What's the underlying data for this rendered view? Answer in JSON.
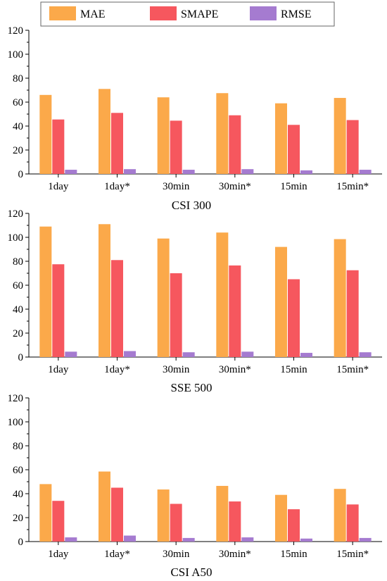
{
  "legend": {
    "items": [
      {
        "label": "MAE",
        "color": "#FBA94A"
      },
      {
        "label": "SMAPE",
        "color": "#F6575E"
      },
      {
        "label": "RMSE",
        "color": "#A57BD0"
      }
    ]
  },
  "chart_data": [
    {
      "type": "bar",
      "xlabel": "CSI 300",
      "categories": [
        "1day",
        "1day*",
        "30min",
        "30min*",
        "15min",
        "15min*"
      ],
      "ylim": [
        0,
        120
      ],
      "yticks": [
        0,
        20,
        40,
        60,
        80,
        100,
        120
      ],
      "series": [
        {
          "name": "MAE",
          "values": [
            66,
            71,
            64,
            67.5,
            59,
            63.5
          ]
        },
        {
          "name": "SMAPE",
          "values": [
            45.5,
            51,
            44.5,
            49,
            41,
            45
          ]
        },
        {
          "name": "RMSE",
          "values": [
            3.5,
            4,
            3.5,
            4,
            3,
            3.5
          ]
        }
      ],
      "legend": "top",
      "grid": false
    },
    {
      "type": "bar",
      "xlabel": "SSE 500",
      "categories": [
        "1day",
        "1day*",
        "30min",
        "30min*",
        "15min",
        "15min*"
      ],
      "ylim": [
        0,
        120
      ],
      "yticks": [
        0,
        20,
        40,
        60,
        80,
        100,
        120
      ],
      "series": [
        {
          "name": "MAE",
          "values": [
            109,
            111,
            99,
            104,
            92,
            98.5
          ]
        },
        {
          "name": "SMAPE",
          "values": [
            77.5,
            81,
            70,
            76.5,
            65,
            72.5
          ]
        },
        {
          "name": "RMSE",
          "values": [
            4.5,
            5,
            4,
            4.5,
            3.5,
            4
          ]
        }
      ],
      "grid": false
    },
    {
      "type": "bar",
      "xlabel": "CSI A50",
      "categories": [
        "1day",
        "1day*",
        "30min",
        "30min*",
        "15min",
        "15min*"
      ],
      "ylim": [
        0,
        120
      ],
      "yticks": [
        0,
        20,
        40,
        60,
        80,
        100,
        120
      ],
      "series": [
        {
          "name": "MAE",
          "values": [
            48,
            58.5,
            43.5,
            46.5,
            39,
            44
          ]
        },
        {
          "name": "SMAPE",
          "values": [
            34,
            45,
            31.5,
            33.5,
            27,
            31
          ]
        },
        {
          "name": "RMSE",
          "values": [
            3.5,
            5,
            3,
            3.5,
            2.5,
            3
          ]
        }
      ],
      "grid": false
    }
  ]
}
